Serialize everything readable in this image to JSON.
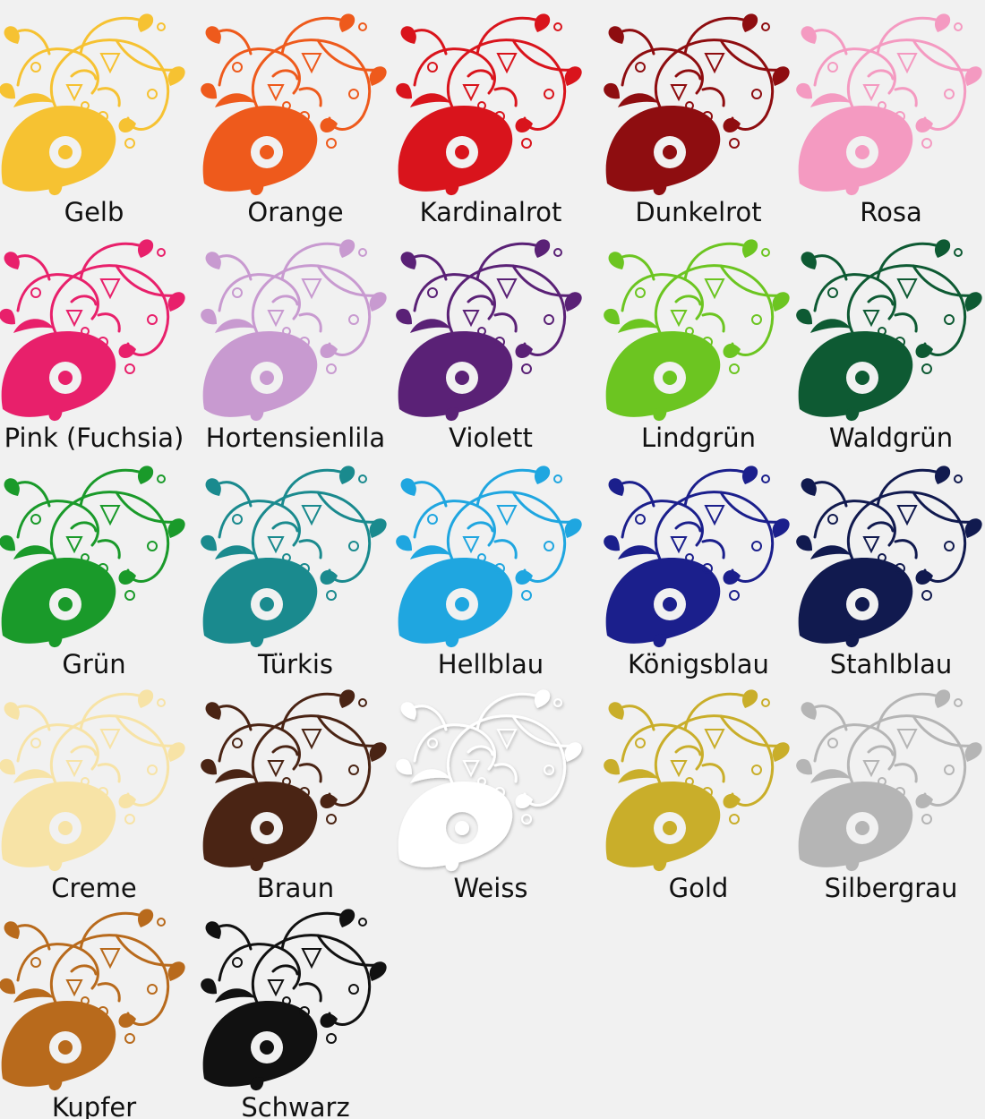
{
  "swatches": [
    {
      "label": "Gelb",
      "color": "#f6c232"
    },
    {
      "label": "Orange",
      "color": "#ee5a1c"
    },
    {
      "label": "Kardinalrot",
      "color": "#d9141c"
    },
    {
      "label": "Dunkelrot",
      "color": "#8e0d10"
    },
    {
      "label": "Rosa",
      "color": "#f49ac1"
    },
    {
      "label": "Pink (Fuchsia)",
      "color": "#e8206b"
    },
    {
      "label": "Hortensienlila",
      "color": "#c89ad0"
    },
    {
      "label": "Violett",
      "color": "#5a2176"
    },
    {
      "label": "Lindgrün",
      "color": "#6cc521"
    },
    {
      "label": "Waldgrün",
      "color": "#0e5a33"
    },
    {
      "label": "Grün",
      "color": "#1a9a2a"
    },
    {
      "label": "Türkis",
      "color": "#1a8a8e"
    },
    {
      "label": "Hellblau",
      "color": "#1fa6e0"
    },
    {
      "label": "Königsblau",
      "color": "#1b1f8c"
    },
    {
      "label": "Stahlblau",
      "color": "#111a4f"
    },
    {
      "label": "Creme",
      "color": "#f7e3a6"
    },
    {
      "label": "Braun",
      "color": "#4a2414"
    },
    {
      "label": "Weiss",
      "color": "#ffffff"
    },
    {
      "label": "Gold",
      "color": "#c9ae2a"
    },
    {
      "label": "Silbergrau",
      "color": "#b5b5b5"
    },
    {
      "label": "Kupfer",
      "color": "#b86a1c"
    },
    {
      "label": "Schwarz",
      "color": "#111111"
    }
  ]
}
